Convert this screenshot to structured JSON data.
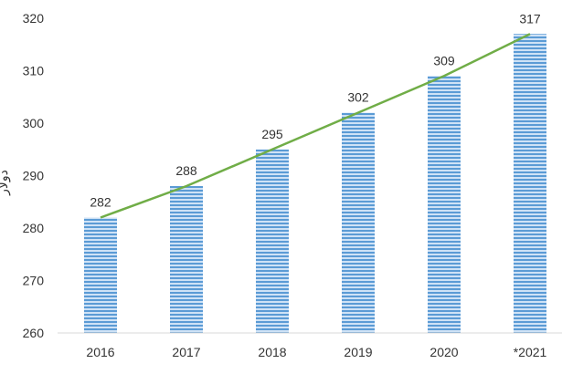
{
  "chart_data": {
    "type": "bar",
    "title": "",
    "xlabel": "",
    "ylabel": "دولار",
    "categories": [
      "2016",
      "2017",
      "2018",
      "2019",
      "2020",
      "*2021"
    ],
    "values": [
      282,
      288,
      295,
      302,
      309,
      317
    ],
    "ylim": [
      260,
      320
    ],
    "yticks": [
      260,
      270,
      280,
      290,
      300,
      310,
      320
    ],
    "grid": false,
    "trendline": true,
    "colors": {
      "bar": "#5b9bd5",
      "bar_light": "#cfe2f6",
      "line": "#70ad47",
      "axis": "#d9d9d9"
    }
  }
}
